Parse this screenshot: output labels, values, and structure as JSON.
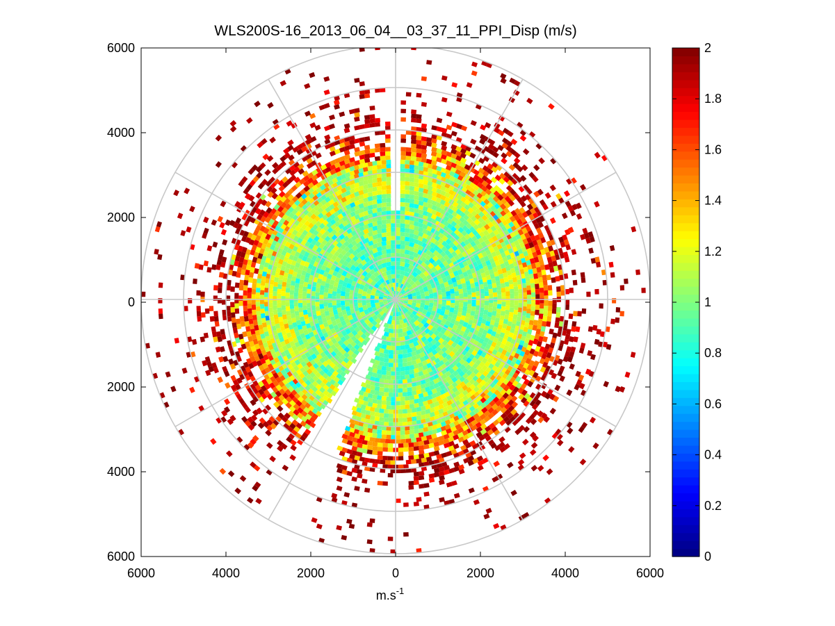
{
  "chart_data": {
    "type": "heatmap",
    "subtype": "polar-ppi",
    "title": "WLS200S-16_2013_06_04__03_37_11_PPI_Disp (m/s)",
    "xlabel": "m.s",
    "xlabel_superscript": "-1",
    "ylabel": "",
    "xlim": [
      -6000,
      6000
    ],
    "ylim": [
      -6000,
      6000
    ],
    "x_ticks": [
      -6000,
      -4000,
      -2000,
      0,
      2000,
      4000,
      6000
    ],
    "x_tick_labels": [
      "6000",
      "4000",
      "2000",
      "0",
      "2000",
      "4000",
      "6000"
    ],
    "y_ticks": [
      6000,
      4000,
      2000,
      0,
      -2000,
      -4000,
      -6000
    ],
    "y_tick_labels": [
      "6000",
      "4000",
      "2000",
      "0",
      "2000",
      "4000",
      "6000"
    ],
    "colorbar": {
      "min": 0,
      "max": 2,
      "ticks": [
        0,
        0.2,
        0.4,
        0.6,
        0.8,
        1,
        1.2,
        1.4,
        1.6,
        1.8,
        2
      ],
      "tick_labels": [
        "0",
        "0.2",
        "0.4",
        "0.6",
        "0.8",
        "1",
        "1.2",
        "1.4",
        "1.6",
        "1.8",
        "2"
      ],
      "colormap": "jet"
    },
    "polar_grid": {
      "ring_radii": [
        1000,
        2000,
        3000,
        4000,
        5000,
        6000
      ],
      "spoke_angles_deg": [
        0,
        30,
        60,
        90,
        120,
        150,
        180,
        210,
        240,
        270,
        300,
        330
      ],
      "color": "#c8c8c8"
    },
    "data_description": "Radial scan of dispersion values; inner region (~<3500 m) mostly 0.8-1.1, outer region 1.5-2 scattered; missing wedges near azimuth 0 deg and ~205 deg",
    "radial_profile": [
      {
        "range_max": 1500,
        "mean": 0.95
      },
      {
        "range_max": 2500,
        "mean": 1.0
      },
      {
        "range_max": 3300,
        "mean": 1.15
      },
      {
        "range_max": 4000,
        "mean": 1.55
      },
      {
        "range_max": 5000,
        "mean": 1.85
      },
      {
        "range_max": 6000,
        "mean": 1.95
      }
    ],
    "gaps_azimuth_deg": [
      [
        -1.5,
        1.5
      ],
      [
        201,
        213
      ]
    ]
  }
}
